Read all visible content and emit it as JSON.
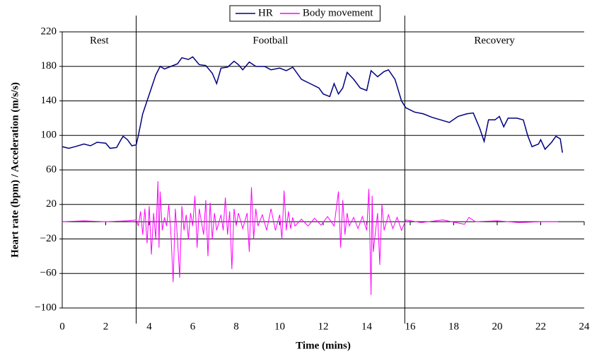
{
  "chart_data": {
    "type": "line",
    "x_label": "Time (mins)",
    "y_label": "Heart rate (bpm) / Acceleration (m/s/s)",
    "xlim": [
      0,
      24
    ],
    "xticks": [
      0,
      2,
      4,
      6,
      8,
      10,
      12,
      14,
      16,
      18,
      20,
      22,
      24
    ],
    "ylim": [
      -100,
      220
    ],
    "yticks": [
      {
        "value": -100,
        "label": "−100"
      },
      {
        "value": -60,
        "label": "−60"
      },
      {
        "value": -20,
        "label": "−20"
      },
      20,
      60,
      100,
      140,
      180,
      220
    ],
    "grid": true,
    "legend": "top",
    "phase_boundaries": [
      3.4,
      15.75
    ],
    "phase_labels": [
      "Rest",
      "Football",
      "Recovery"
    ],
    "series": [
      {
        "name": "HR",
        "color": "#000080",
        "x": [
          0,
          0.3,
          0.6,
          1,
          1.3,
          1.6,
          2,
          2.2,
          2.5,
          2.7,
          2.8,
          3,
          3.2,
          3.4,
          3.5,
          3.7,
          3.9,
          4.1,
          4.3,
          4.5,
          4.7,
          5,
          5.3,
          5.5,
          5.8,
          6,
          6.3,
          6.6,
          6.9,
          7.1,
          7.3,
          7.6,
          7.9,
          8.1,
          8.3,
          8.6,
          8.9,
          9.3,
          9.6,
          10,
          10.3,
          10.6,
          11,
          11.4,
          11.8,
          12,
          12.3,
          12.5,
          12.7,
          12.9,
          13.1,
          13.4,
          13.7,
          14,
          14.2,
          14.5,
          14.8,
          15,
          15.3,
          15.6,
          15.8,
          16.2,
          16.6,
          17,
          17.4,
          17.8,
          18.2,
          18.6,
          18.9,
          19.2,
          19.4,
          19.6,
          19.9,
          20.1,
          20.3,
          20.5,
          20.9,
          21.2,
          21.4,
          21.6,
          21.9,
          22,
          22.2,
          22.5,
          22.7,
          22.9,
          23
        ],
        "values": [
          87,
          85,
          87,
          90,
          88,
          92,
          91,
          85,
          86,
          95,
          99,
          95,
          88,
          89,
          100,
          125,
          140,
          155,
          170,
          180,
          177,
          180,
          183,
          190,
          188,
          191,
          182,
          181,
          172,
          160,
          178,
          179,
          186,
          182,
          176,
          185,
          180,
          180,
          176,
          178,
          175,
          179,
          165,
          160,
          155,
          148,
          145,
          160,
          148,
          155,
          173,
          165,
          155,
          152,
          175,
          168,
          174,
          176,
          165,
          140,
          132,
          127,
          125,
          121,
          118,
          115,
          122,
          125,
          126,
          108,
          93,
          118,
          118,
          122,
          110,
          120,
          120,
          118,
          100,
          87,
          90,
          95,
          84,
          92,
          99,
          96,
          80
        ]
      },
      {
        "name": "Body movement",
        "color": "#ff00ff",
        "x": [
          0,
          1,
          2,
          3,
          3.4,
          3.5,
          3.6,
          3.7,
          3.8,
          3.9,
          4.0,
          4.1,
          4.2,
          4.3,
          4.4,
          4.45,
          4.5,
          4.6,
          4.7,
          4.8,
          4.9,
          5.0,
          5.1,
          5.2,
          5.3,
          5.4,
          5.5,
          5.6,
          5.7,
          5.8,
          5.9,
          6.0,
          6.1,
          6.2,
          6.3,
          6.5,
          6.6,
          6.7,
          6.8,
          6.9,
          7.0,
          7.1,
          7.3,
          7.4,
          7.5,
          7.6,
          7.7,
          7.8,
          7.9,
          8.0,
          8.1,
          8.3,
          8.5,
          8.6,
          8.7,
          8.8,
          8.9,
          9.0,
          9.2,
          9.4,
          9.6,
          9.8,
          10.0,
          10.1,
          10.2,
          10.3,
          10.4,
          10.5,
          10.6,
          10.7,
          11,
          11.3,
          11.6,
          11.9,
          12.2,
          12.5,
          12.7,
          12.8,
          12.9,
          13.0,
          13.1,
          13.2,
          13.4,
          13.6,
          13.8,
          14.0,
          14.1,
          14.2,
          14.25,
          14.3,
          14.5,
          14.6,
          14.7,
          14.8,
          15,
          15.2,
          15.4,
          15.6,
          15.8,
          16.5,
          17.5,
          18.5,
          18.7,
          19,
          20,
          21,
          22,
          22.8
        ],
        "values": [
          0,
          1,
          0,
          1,
          2,
          -5,
          12,
          -15,
          15,
          -25,
          18,
          -38,
          10,
          -20,
          47,
          -30,
          35,
          -10,
          5,
          -5,
          20,
          -15,
          -70,
          15,
          -20,
          -65,
          18,
          -10,
          8,
          -20,
          10,
          -5,
          30,
          -30,
          15,
          -15,
          25,
          -40,
          22,
          -20,
          10,
          -10,
          8,
          -10,
          28,
          -15,
          12,
          -55,
          15,
          -5,
          10,
          -8,
          10,
          -35,
          40,
          -20,
          15,
          -5,
          8,
          -10,
          15,
          -10,
          8,
          -20,
          36,
          -10,
          12,
          -8,
          5,
          -5,
          3,
          -5,
          4,
          -4,
          6,
          -5,
          35,
          -30,
          25,
          -15,
          10,
          -5,
          5,
          -8,
          6,
          -10,
          38,
          -85,
          30,
          -35,
          10,
          -50,
          20,
          -10,
          8,
          -8,
          5,
          -10,
          2,
          -1,
          2,
          -3,
          5,
          0,
          1,
          -1,
          0,
          0
        ]
      }
    ]
  }
}
